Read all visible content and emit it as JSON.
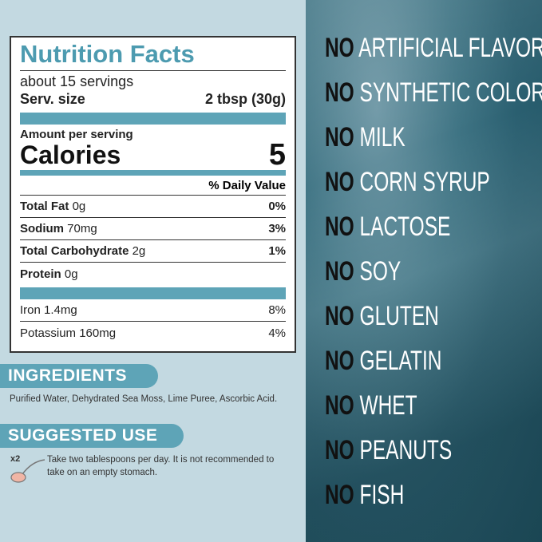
{
  "nutrition": {
    "title": "Nutrition Facts",
    "servings": "about 15 servings",
    "serv_size_label": "Serv. size",
    "serv_size_value": "2 tbsp (30g)",
    "amount_label": "Amount per serving",
    "calories_label": "Calories",
    "calories_value": "5",
    "daily_value_header": "% Daily Value",
    "rows": [
      {
        "name": "Total Fat",
        "amount": "0g",
        "dv": "0%",
        "bold": true
      },
      {
        "name": "Sodium",
        "amount": "70mg",
        "dv": "3%",
        "bold": true
      },
      {
        "name": "Total Carbohydrate",
        "amount": "2g",
        "dv": "1%",
        "bold": true
      },
      {
        "name": "Protein",
        "amount": "0g",
        "dv": "",
        "bold": true
      }
    ],
    "minerals": [
      {
        "name": "Iron 1.4mg",
        "dv": "8%"
      },
      {
        "name": "Potassium 160mg",
        "dv": "4%"
      }
    ]
  },
  "ingredients": {
    "heading": "INGREDIENTS",
    "text": "Purified Water, Dehydrated Sea Moss, Lime Puree, Ascorbic Acid."
  },
  "suggested_use": {
    "heading": "SUGGESTED USE",
    "multiplier": "x2",
    "icon": "spoon-icon",
    "text": "Take two tablespoons per day. It is not recommended to take on an empty stomach."
  },
  "free_from": {
    "prefix": "NO",
    "items": [
      "ARTIFICIAL FLAVORS",
      "SYNTHETIC COLORS",
      "MILK",
      "CORN SYRUP",
      "LACTOSE",
      "SOY",
      "GLUTEN",
      "GELATIN",
      "WHET",
      "PEANUTS",
      "FISH"
    ]
  },
  "colors": {
    "accent": "#5ea4b7",
    "title": "#4d9bb0",
    "panel": "#c3d9e1",
    "right_bg": "#2a5f70"
  }
}
